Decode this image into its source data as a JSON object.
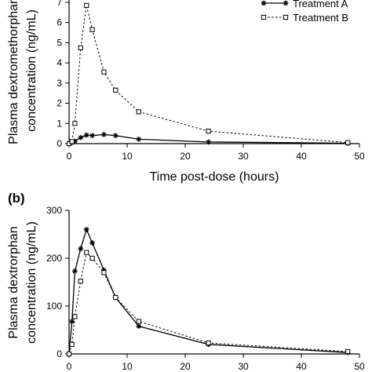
{
  "panel_b_label": "(b)",
  "chart_data": [
    {
      "type": "line",
      "xlabel": "Time post-dose (hours)",
      "ylabel_lines": [
        "Plasma dextromethorphan",
        "concentration (ng/mL)"
      ],
      "xlim": [
        0,
        50
      ],
      "ylim": [
        0,
        7
      ],
      "xticks": [
        0,
        10,
        20,
        30,
        40,
        50
      ],
      "yticks": [
        0,
        1,
        2,
        3,
        4,
        5,
        6,
        7
      ],
      "legend": "top-right",
      "series": [
        {
          "name": "Treatment A",
          "style": "solid",
          "marker": "star",
          "color": "#000000",
          "x": [
            0,
            0.5,
            1,
            2,
            3,
            4,
            6,
            8,
            12,
            24,
            48
          ],
          "y": [
            0,
            0.05,
            0.12,
            0.3,
            0.42,
            0.4,
            0.45,
            0.4,
            0.22,
            0.08,
            0.02
          ]
        },
        {
          "name": "Treatment B",
          "style": "dashed",
          "marker": "square",
          "color": "#000000",
          "x": [
            0,
            0.5,
            1,
            2,
            3,
            4,
            6,
            8,
            12,
            24,
            48
          ],
          "y": [
            0,
            0.1,
            1.0,
            4.75,
            6.85,
            5.65,
            3.55,
            2.65,
            1.58,
            0.62,
            0.05
          ]
        }
      ]
    },
    {
      "type": "line",
      "xlabel": "",
      "ylabel_lines": [
        "Plasma dextrorphan",
        "concentration (ng/mL)"
      ],
      "xlim": [
        0,
        50
      ],
      "ylim": [
        0,
        300
      ],
      "xticks": [
        0,
        10,
        20,
        30,
        40,
        50
      ],
      "yticks": [
        0,
        100,
        200,
        300
      ],
      "series": [
        {
          "name": "Treatment A",
          "style": "solid",
          "marker": "star",
          "color": "#000000",
          "x": [
            0,
            0.5,
            1,
            2,
            3,
            4,
            6,
            8,
            12,
            24,
            48
          ],
          "y": [
            0,
            68,
            173,
            220,
            260,
            232,
            175,
            118,
            58,
            20,
            3
          ]
        },
        {
          "name": "Treatment B",
          "style": "dashed",
          "marker": "square",
          "color": "#000000",
          "x": [
            0,
            0.5,
            1,
            2,
            3,
            4,
            6,
            8,
            12,
            24,
            48
          ],
          "y": [
            0,
            20,
            78,
            152,
            212,
            200,
            170,
            118,
            68,
            23,
            5
          ]
        }
      ]
    }
  ]
}
